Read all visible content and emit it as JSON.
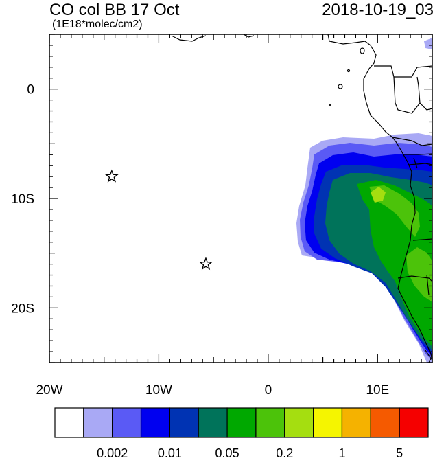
{
  "title_left": "CO col BB 17 Oct",
  "subtitle": "(1E18*molec/cm2)",
  "title_right": "2018-10-19_03",
  "map": {
    "lon_range": [
      -20,
      15
    ],
    "lat_range": [
      -25,
      5
    ],
    "x_ticks": [
      {
        "value": -20,
        "label": "20W"
      },
      {
        "value": -10,
        "label": "10W"
      },
      {
        "value": 0,
        "label": "0"
      },
      {
        "value": 10,
        "label": "10E"
      }
    ],
    "y_ticks": [
      {
        "value": 0,
        "label": "0"
      },
      {
        "value": -10,
        "label": "10S"
      },
      {
        "value": -20,
        "label": "20S"
      }
    ],
    "markers": [
      {
        "name": "star-marker-1",
        "lon": -14.3,
        "lat": -8.0
      },
      {
        "name": "star-marker-2",
        "lon": -5.7,
        "lat": -16.0
      }
    ]
  },
  "colorbar": {
    "colors": [
      "#ffffff",
      "#a9a9f5",
      "#5a5af5",
      "#0000f0",
      "#0033b3",
      "#00735a",
      "#00a800",
      "#4cc30a",
      "#a5de10",
      "#f5f500",
      "#f5b200",
      "#f55a00",
      "#f50000"
    ],
    "labels": [
      {
        "index": 2,
        "text": "0.002"
      },
      {
        "index": 4,
        "text": "0.01"
      },
      {
        "index": 6,
        "text": "0.05"
      },
      {
        "index": 8,
        "text": "0.2"
      },
      {
        "index": 10,
        "text": "1"
      },
      {
        "index": 12,
        "text": "5"
      }
    ]
  }
}
